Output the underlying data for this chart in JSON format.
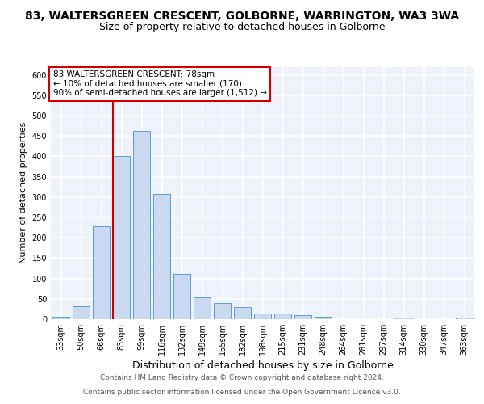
{
  "title1": "83, WALTERSGREEN CRESCENT, GOLBORNE, WARRINGTON, WA3 3WA",
  "title2": "Size of property relative to detached houses in Golborne",
  "xlabel": "Distribution of detached houses by size in Golborne",
  "ylabel": "Number of detached properties",
  "categories": [
    "33sqm",
    "50sqm",
    "66sqm",
    "83sqm",
    "99sqm",
    "116sqm",
    "132sqm",
    "149sqm",
    "165sqm",
    "182sqm",
    "198sqm",
    "215sqm",
    "231sqm",
    "248sqm",
    "264sqm",
    "281sqm",
    "297sqm",
    "314sqm",
    "330sqm",
    "347sqm",
    "363sqm"
  ],
  "values": [
    5,
    32,
    228,
    401,
    462,
    308,
    112,
    54,
    40,
    30,
    14,
    13,
    10,
    5,
    0,
    0,
    0,
    4,
    0,
    0,
    4
  ],
  "bar_color": "#c9d9f0",
  "bar_edge_color": "#5b9bd5",
  "annotation_line1": "83 WALTERSGREEN CRESCENT: 78sqm",
  "annotation_line2": "← 10% of detached houses are smaller (170)",
  "annotation_line3": "90% of semi-detached houses are larger (1,512) →",
  "annotation_box_color": "#ffffff",
  "annotation_box_edge": "#cc0000",
  "vline_color": "#cc0000",
  "ylim": [
    0,
    620
  ],
  "yticks": [
    0,
    50,
    100,
    150,
    200,
    250,
    300,
    350,
    400,
    450,
    500,
    550,
    600
  ],
  "footer1": "Contains HM Land Registry data © Crown copyright and database right 2024.",
  "footer2": "Contains public sector information licensed under the Open Government Licence v3.0.",
  "bg_color": "#eef2fa",
  "grid_color": "#ffffff",
  "title1_fontsize": 10,
  "title2_fontsize": 9,
  "xlabel_fontsize": 9,
  "ylabel_fontsize": 8,
  "tick_fontsize": 7,
  "annotation_fontsize": 7.5,
  "footer_fontsize": 6.5
}
